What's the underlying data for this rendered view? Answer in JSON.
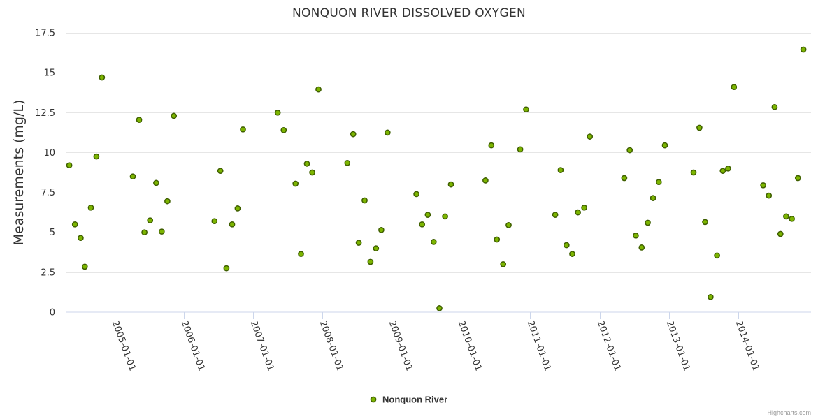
{
  "chart_data": {
    "type": "scatter",
    "title": "NONQUON RIVER DISSOLVED OXYGEN",
    "ylabel": "Measurements (mg/L)",
    "xlabel": "",
    "ylim": [
      0,
      17.5
    ],
    "yticks": [
      0,
      2.5,
      5,
      7.5,
      10,
      12.5,
      15,
      17.5
    ],
    "ytick_labels": [
      "0",
      "2.5",
      "5",
      "7.5",
      "10",
      "12.5",
      "15",
      "17.5"
    ],
    "xlim": [
      "2004-04-23",
      "2015-01-19"
    ],
    "xtick_labels": [
      "2005-01-01",
      "2006-01-01",
      "2007-01-01",
      "2008-01-01",
      "2009-01-01",
      "2010-01-01",
      "2011-01-01",
      "2012-01-01",
      "2013-01-01",
      "2014-01-01"
    ],
    "legend_position": "bottom-center",
    "grid": true,
    "series": [
      {
        "name": "Nonquon River",
        "color": "#7cb500",
        "x": [
          "2004-05-08",
          "2004-06-07",
          "2004-07-07",
          "2004-07-29",
          "2004-08-30",
          "2004-09-28",
          "2004-10-27",
          "2005-04-08",
          "2005-05-11",
          "2005-06-08",
          "2005-07-08",
          "2005-08-09",
          "2005-09-07",
          "2005-10-07",
          "2005-11-10",
          "2006-06-12",
          "2006-07-13",
          "2006-08-14",
          "2006-09-13",
          "2006-10-12",
          "2006-11-09",
          "2007-05-11",
          "2007-06-12",
          "2007-08-13",
          "2007-09-11",
          "2007-10-12",
          "2007-11-09",
          "2007-12-12",
          "2008-05-12",
          "2008-06-12",
          "2008-07-11",
          "2008-08-11",
          "2008-09-11",
          "2008-10-10",
          "2008-11-07",
          "2008-12-10",
          "2009-05-11",
          "2009-06-10",
          "2009-07-10",
          "2009-08-10",
          "2009-09-09",
          "2009-10-09",
          "2009-11-09",
          "2010-05-10",
          "2010-06-10",
          "2010-07-09",
          "2010-08-11",
          "2010-09-09",
          "2010-11-09",
          "2010-12-10",
          "2011-05-12",
          "2011-06-10",
          "2011-07-11",
          "2011-08-10",
          "2011-09-09",
          "2011-10-12",
          "2011-11-11",
          "2012-05-10",
          "2012-06-08",
          "2012-07-10",
          "2012-08-10",
          "2012-09-11",
          "2012-10-09",
          "2012-11-08",
          "2012-12-10",
          "2013-05-10",
          "2013-06-10",
          "2013-07-10",
          "2013-08-08",
          "2013-09-11",
          "2013-10-11",
          "2013-11-08",
          "2013-12-09",
          "2014-05-12",
          "2014-06-11",
          "2014-07-11",
          "2014-08-11",
          "2014-09-10",
          "2014-10-10",
          "2014-11-11",
          "2014-12-10"
        ],
        "y": [
          9.2,
          5.5,
          4.65,
          2.85,
          6.55,
          9.75,
          14.7,
          8.5,
          12.05,
          5.0,
          5.75,
          8.1,
          5.05,
          6.95,
          12.3,
          5.7,
          8.85,
          2.75,
          5.5,
          6.5,
          11.45,
          12.5,
          11.4,
          8.05,
          3.65,
          9.3,
          8.75,
          13.95,
          9.35,
          11.15,
          4.35,
          7.0,
          3.15,
          4.0,
          5.15,
          11.25,
          7.4,
          5.5,
          6.1,
          4.4,
          0.25,
          6.0,
          8.0,
          8.25,
          10.45,
          4.55,
          3.0,
          5.45,
          10.2,
          12.7,
          6.1,
          8.9,
          4.2,
          3.65,
          6.25,
          6.55,
          11.0,
          8.4,
          10.15,
          4.8,
          4.05,
          5.6,
          7.15,
          8.15,
          10.45,
          8.75,
          11.55,
          5.65,
          0.95,
          3.55,
          8.85,
          9.0,
          14.1,
          7.95,
          7.3,
          12.85,
          4.9,
          6.0,
          5.85,
          8.4,
          16.45
        ]
      }
    ]
  },
  "legend": {
    "label": "Nonquon River"
  },
  "credits": "Highcharts.com"
}
